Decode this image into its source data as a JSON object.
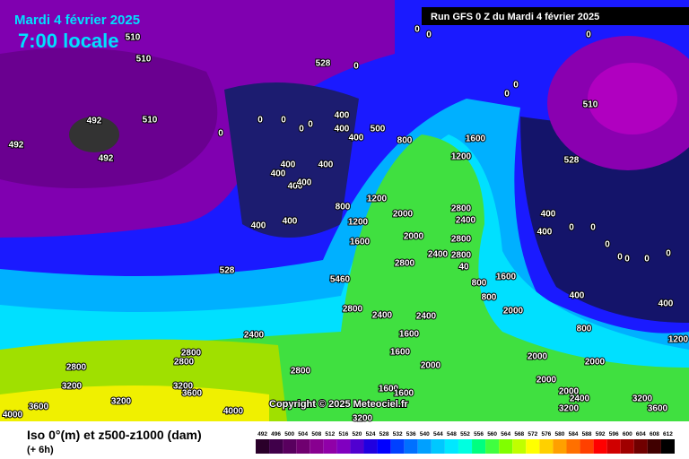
{
  "header": {
    "date": "Mardi 4 février 2025",
    "time": "7:00 locale",
    "run": "Run GFS 0 Z du Mardi 4 février 2025"
  },
  "copyright": "Copyright © 2025 Meteociel.fr",
  "map_labels": [
    "510",
    "510",
    "492",
    "492",
    "492",
    "510",
    "528",
    "510",
    "528",
    "528",
    "0",
    "0",
    "0",
    "0",
    "0",
    "0",
    "0",
    "0",
    "0",
    "0",
    "0",
    "400",
    "400",
    "400",
    "500",
    "800",
    "1600",
    "1200",
    "400",
    "400",
    "400",
    "400",
    "400",
    "800",
    "1200",
    "400",
    "400",
    "1200",
    "1600",
    "2000",
    "2000",
    "2800",
    "2400",
    "2800",
    "2400",
    "2800",
    "2800",
    "400",
    "400",
    "0",
    "0",
    "0",
    "0",
    "0",
    "0",
    "0",
    "400",
    "400",
    "800",
    "2000",
    "2000",
    "800",
    "800",
    "1600",
    "1200",
    "2800",
    "2400",
    "2400",
    "2400",
    "1600",
    "1600",
    "2000",
    "2000",
    "2000",
    "2800",
    "2800",
    "2800",
    "2800",
    "3200",
    "3200",
    "3600",
    "3600",
    "3200",
    "4000",
    "4000",
    "1600",
    "1600",
    "2000",
    "2400",
    "3200",
    "3600",
    "3200",
    "3200",
    "5460",
    "40"
  ],
  "footer": {
    "title": "Iso 0°(m) et z500-z1000 (dam)",
    "subtitle": "(+ 6h)",
    "scale": [
      492,
      496,
      500,
      504,
      508,
      512,
      516,
      520,
      524,
      528,
      532,
      536,
      540,
      544,
      548,
      552,
      556,
      560,
      564,
      568,
      572,
      576,
      580,
      584,
      588,
      592,
      596,
      600,
      604,
      608,
      612
    ],
    "scale_colors": [
      "#2a002a",
      "#40004a",
      "#58005e",
      "#700070",
      "#880090",
      "#9000a8",
      "#8000c0",
      "#5000d0",
      "#2000e0",
      "#0000ff",
      "#0040ff",
      "#0070ff",
      "#00a0ff",
      "#00c8ff",
      "#00e8ff",
      "#00ffe0",
      "#00ff80",
      "#40ff40",
      "#80ff00",
      "#c0ff00",
      "#ffff00",
      "#ffd000",
      "#ffa000",
      "#ff7000",
      "#ff4000",
      "#ff0000",
      "#d00000",
      "#a00000",
      "#700000",
      "#400000",
      "#000000"
    ]
  }
}
